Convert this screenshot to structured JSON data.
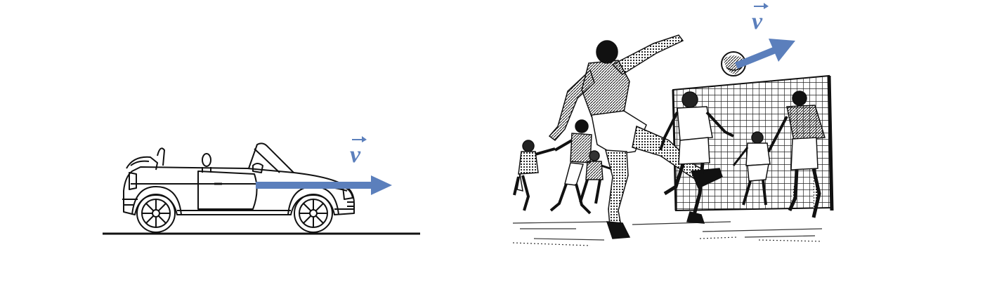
{
  "panels": [
    {
      "id": "car",
      "subject": "car-illustration",
      "vector_label": "v"
    },
    {
      "id": "soccer",
      "subject": "soccer-illustration",
      "vector_label": "v"
    }
  ],
  "colors": {
    "arrow": "#5b7fbc",
    "ink": "#111111",
    "background": "#ffffff"
  }
}
